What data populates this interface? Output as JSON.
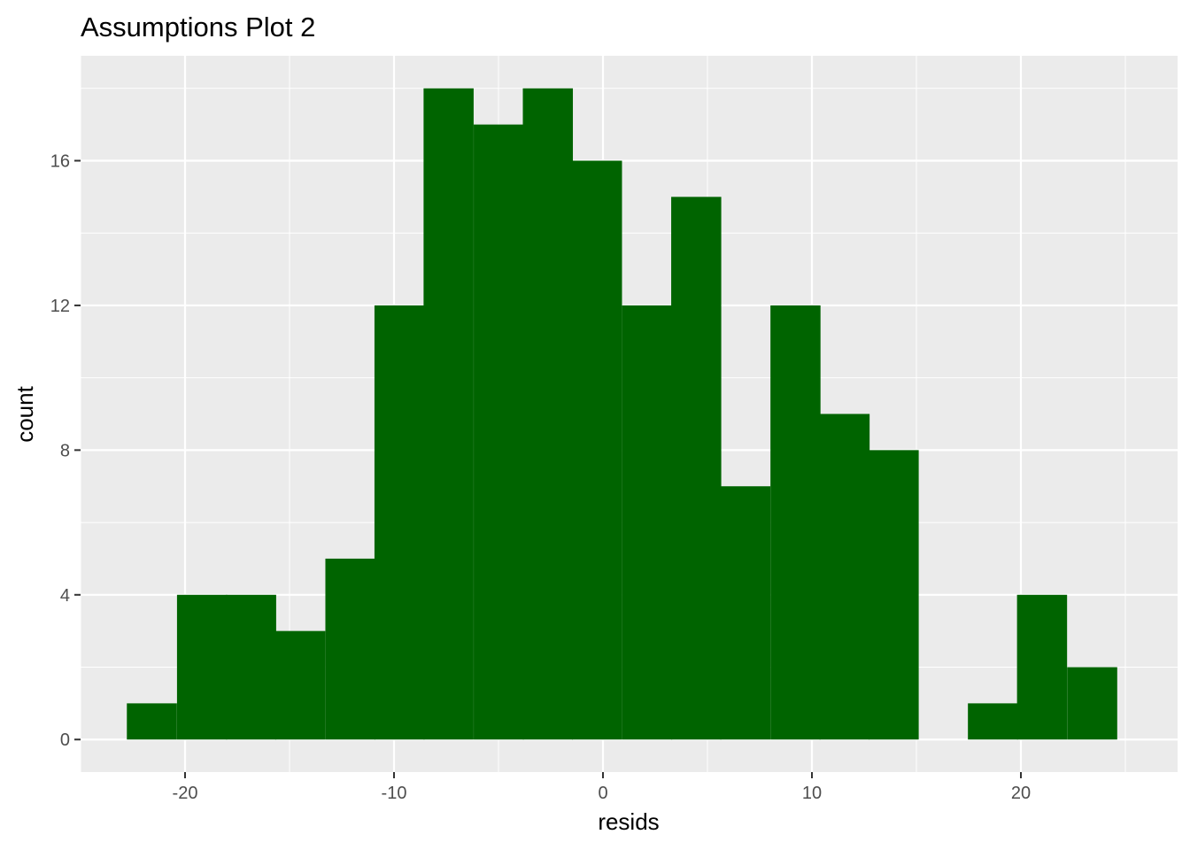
{
  "chart_data": {
    "type": "bar",
    "title": "Assumptions Plot 2",
    "xlabel": "resids",
    "ylabel": "count",
    "bin_width": 2.37,
    "bins": [
      {
        "x": -21.6,
        "count": 1
      },
      {
        "x": -19.2,
        "count": 4
      },
      {
        "x": -16.85,
        "count": 4
      },
      {
        "x": -14.5,
        "count": 3
      },
      {
        "x": -12.1,
        "count": 5
      },
      {
        "x": -9.75,
        "count": 12
      },
      {
        "x": -7.4,
        "count": 18
      },
      {
        "x": -5.0,
        "count": 17
      },
      {
        "x": -2.65,
        "count": 18
      },
      {
        "x": -0.3,
        "count": 16
      },
      {
        "x": 2.1,
        "count": 12
      },
      {
        "x": 4.45,
        "count": 15
      },
      {
        "x": 6.8,
        "count": 7
      },
      {
        "x": 9.2,
        "count": 12
      },
      {
        "x": 11.55,
        "count": 9
      },
      {
        "x": 13.9,
        "count": 8
      },
      {
        "x": 16.3,
        "count": 0
      },
      {
        "x": 18.65,
        "count": 1
      },
      {
        "x": 21.0,
        "count": 4
      },
      {
        "x": 23.4,
        "count": 2
      }
    ],
    "xlim": [
      -25,
      27.5
    ],
    "ylim": [
      -0.9,
      18.9
    ],
    "xticks": [
      -20,
      -10,
      0,
      10,
      20
    ],
    "xtick_labels": [
      "-20",
      "-10",
      "0",
      "10",
      "20"
    ],
    "yticks": [
      0,
      4,
      8,
      12,
      16
    ],
    "ytick_labels": [
      "0",
      "4",
      "8",
      "12",
      "16"
    ],
    "grid": true,
    "bar_color": "#006400",
    "panel_color": "#EBEBEB",
    "grid_color": "#FFFFFF"
  }
}
